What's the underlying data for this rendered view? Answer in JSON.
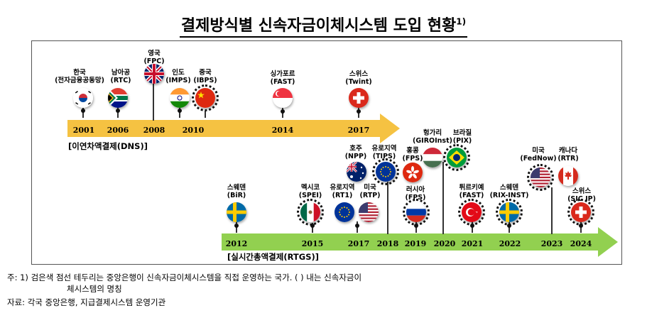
{
  "title": "결제방식별 신속자금이체시스템 도입 현황",
  "title_sup": "1)",
  "dns_label": "[이연차액결제(DNS)]",
  "rtgs_label": "[실시간총액결제(RTGS)]",
  "dns_years": [
    "2001",
    "2006",
    "2008",
    "2010",
    "2014",
    "2017"
  ],
  "rtgs_years": [
    "2012",
    "2015",
    "2017",
    "2018",
    "2019",
    "2020",
    "2021",
    "2022",
    "2023",
    "2024"
  ],
  "dns_systems": [
    {
      "line1": "한국",
      "line2": "(전자금융공동망)",
      "flag": "korea-flag-icon"
    },
    {
      "line1": "남아공",
      "line2": "(RTC)",
      "flag": "south-africa-flag-icon"
    },
    {
      "line1": "영국",
      "line2": "(FPC)",
      "flag": "uk-flag-icon"
    },
    {
      "line1": "인도",
      "line2": "(IMPS)",
      "flag": "india-flag-icon"
    },
    {
      "line1": "중국",
      "line2": "(IBPS)",
      "flag": "china-flag-icon"
    },
    {
      "line1": "싱가포르",
      "line2": "(FAST)",
      "flag": "singapore-flag-icon"
    },
    {
      "line1": "스위스",
      "line2": "(Twint)",
      "flag": "switzerland-flag-icon"
    }
  ],
  "rtgs_systems": [
    {
      "line1": "스웨덴",
      "line2": "(BiR)",
      "flag": "sweden-flag-icon"
    },
    {
      "line1": "멕시코",
      "line2": "(SPEI)",
      "flag": "mexico-flag-icon"
    },
    {
      "line1": "유로지역",
      "line2": "(RT1)",
      "flag": "eu-flag-icon"
    },
    {
      "line1": "미국",
      "line2": "(RTP)",
      "flag": "usa-flag-icon"
    },
    {
      "line1": "호주",
      "line2": "(NPP)",
      "flag": "australia-flag-icon"
    },
    {
      "line1": "유로지역",
      "line2": "(TIPS)",
      "flag": "eu-flag-icon"
    },
    {
      "line1": "홍콩",
      "line2": "(FPS)",
      "flag": "hong-kong-flag-icon"
    },
    {
      "line1": "러시아",
      "line2": "(FPS)",
      "flag": "russia-flag-icon"
    },
    {
      "line1": "헝가리",
      "line2": "(GIROInst)",
      "flag": "hungary-flag-icon"
    },
    {
      "line1": "브라질",
      "line2": "(PIX)",
      "flag": "brazil-flag-icon"
    },
    {
      "line1": "튀르키예",
      "line2": "(FAST)",
      "flag": "turkey-flag-icon"
    },
    {
      "line1": "스웨덴",
      "line2": "(RIX-INST)",
      "flag": "sweden-flag-icon"
    },
    {
      "line1": "미국",
      "line2": "(FedNow)",
      "flag": "usa-flag-icon"
    },
    {
      "line1": "캐나다",
      "line2": "(RTR)",
      "flag": "canada-flag-icon"
    },
    {
      "line1": "스위스",
      "line2": "(SIC IP)",
      "flag": "switzerland-flag-icon"
    }
  ],
  "notes": {
    "note1_a": "주: 1) 검은색 점선 테두리는 중앙은행이 신속자금이체시스템을 직접 운영하는 국가. ( ) 내는 신속자금이",
    "note1_b": "체시스템의 명칭",
    "source": "자료: 각국 중앙은행, 지급결제시스템 운영기관"
  },
  "colors": {
    "dns_arrow": "#f5c242",
    "rtgs_arrow": "#92d050"
  }
}
